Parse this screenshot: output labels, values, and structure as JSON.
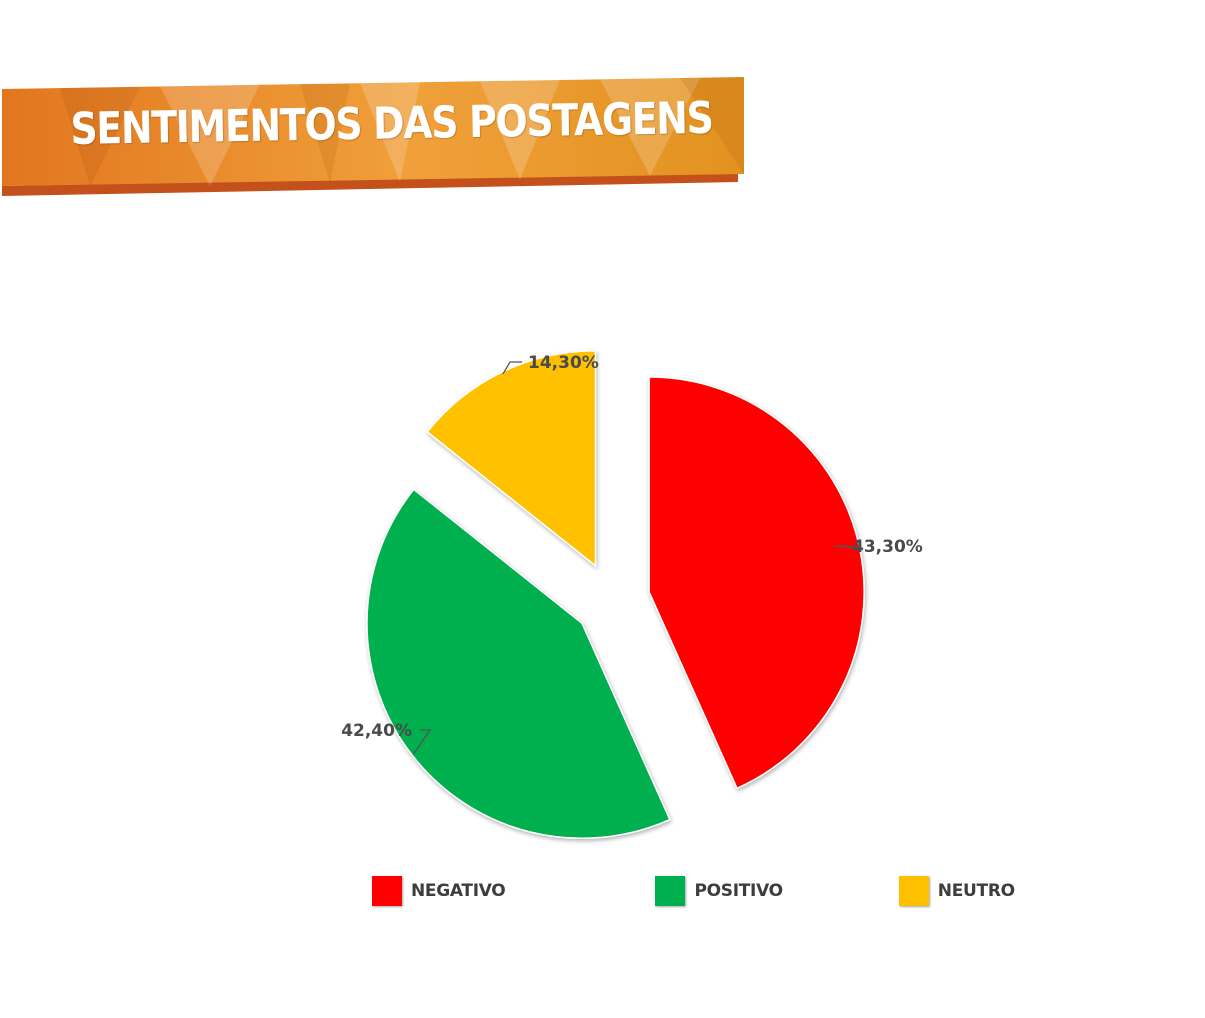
{
  "header": {
    "title": "SENTIMENTOS DAS POSTAGENS"
  },
  "theme": {
    "banner_light": "#F0A03A",
    "banner_dark": "#E2761F",
    "banner_shadow": "#C4501C"
  },
  "chart_data": {
    "type": "pie",
    "exploded": true,
    "legend_position": "bottom",
    "slices": [
      {
        "name": "NEGATIVO",
        "value": 43.3,
        "label": "43,30%",
        "color": "#FF0000"
      },
      {
        "name": "POSITIVO",
        "value": 42.4,
        "label": "42,40%",
        "color": "#00B050"
      },
      {
        "name": "NEUTRO",
        "value": 14.3,
        "label": "14,30%",
        "color": "#FFC000"
      }
    ]
  }
}
